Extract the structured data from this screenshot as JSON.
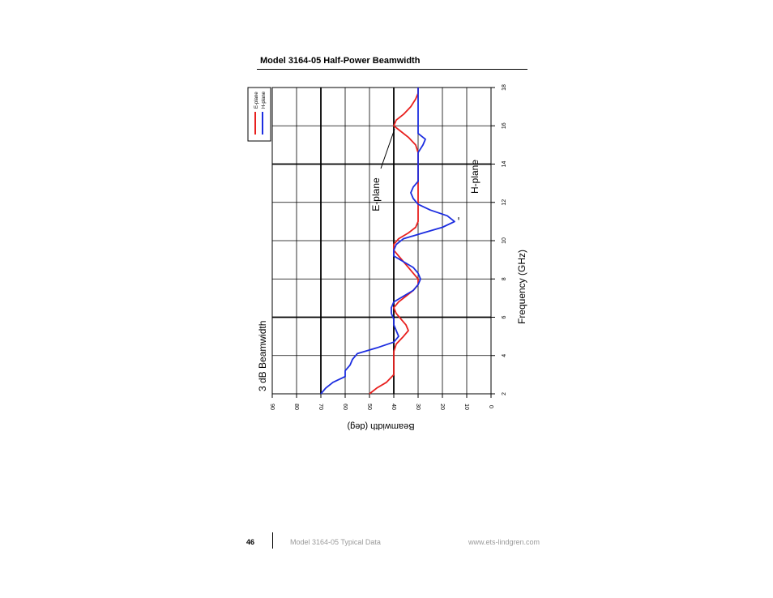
{
  "page": {
    "heading": "Model 3164-05 Half-Power Beamwidth",
    "footer": {
      "page_number": "46",
      "doc_title": "Model 3164-05 Typical Data",
      "url": "www.ets-lindgren.com"
    }
  },
  "chart_data": {
    "type": "line",
    "orientation": "rotated-90-clockwise",
    "title": "3 dB Beamwidth",
    "xlabel": "Frequency (GHz)",
    "ylabel": "Beamwidth (deg)",
    "xlim": [
      2,
      18
    ],
    "ylim": [
      0,
      90
    ],
    "x_ticks": [
      "2",
      "4",
      "6",
      "8",
      "10",
      "12",
      "14",
      "16",
      "18"
    ],
    "y_ticks": [
      "90",
      "80",
      "70",
      "60",
      "50",
      "40",
      "30",
      "20",
      "10",
      "0"
    ],
    "grid": true,
    "legend": {
      "placement": "top-left",
      "entries": [
        "E-plane",
        "H-plane"
      ]
    },
    "annotations": [
      {
        "text": "E-plane",
        "series": "E-plane",
        "x": 16.0,
        "y": 39
      },
      {
        "text": "H-plane",
        "series": "H-plane",
        "x": 11.0,
        "y": 14
      }
    ],
    "series": [
      {
        "name": "E-plane",
        "color": "#e8201e",
        "x": [
          2.0,
          2.3,
          2.6,
          3.0,
          3.4,
          3.8,
          4.2,
          4.6,
          5.0,
          5.3,
          5.6,
          5.9,
          6.2,
          6.5,
          6.8,
          7.1,
          7.4,
          7.7,
          8.0,
          8.3,
          8.6,
          8.9,
          9.2,
          9.5,
          9.8,
          10.1,
          10.4,
          10.7,
          11.0,
          11.4,
          11.8,
          12.2,
          12.6,
          13.0,
          13.4,
          13.8,
          14.2,
          14.6,
          15.0,
          15.4,
          15.8,
          16.0,
          16.3,
          16.6,
          17.0,
          17.4,
          17.7,
          18.0
        ],
        "y": [
          50,
          47,
          43,
          40,
          40,
          40,
          40,
          39,
          36,
          34,
          35,
          37,
          39,
          40,
          38,
          35,
          32,
          30,
          30,
          32,
          34,
          36,
          38,
          40,
          40,
          38,
          34,
          31,
          30,
          30,
          30,
          30,
          30,
          30,
          30,
          30,
          30,
          30,
          31,
          34,
          38,
          40,
          39,
          36,
          33,
          31,
          30,
          30
        ]
      },
      {
        "name": "H-plane",
        "color": "#1c2de0",
        "x": [
          2.0,
          2.3,
          2.6,
          2.9,
          3.2,
          3.5,
          3.8,
          4.1,
          4.4,
          4.7,
          5.0,
          5.3,
          5.6,
          5.9,
          6.2,
          6.5,
          6.8,
          7.1,
          7.4,
          7.7,
          8.0,
          8.3,
          8.6,
          8.9,
          9.2,
          9.5,
          9.8,
          10.1,
          10.4,
          10.7,
          11.0,
          11.3,
          11.6,
          11.9,
          12.2,
          12.5,
          12.8,
          13.1,
          13.4,
          13.8,
          14.2,
          14.6,
          15.0,
          15.3,
          15.6,
          15.9,
          16.2,
          16.6,
          17.0,
          17.4,
          17.8,
          18.0
        ],
        "y": [
          70,
          68,
          65,
          60,
          60,
          58,
          57,
          55,
          47,
          40,
          38,
          39,
          40,
          40,
          41,
          41,
          40,
          36,
          32,
          30,
          29,
          30,
          32,
          36,
          40,
          40,
          39,
          36,
          28,
          20,
          15,
          18,
          25,
          30,
          32,
          33,
          32,
          30,
          30,
          30,
          30,
          30,
          28,
          27,
          30,
          30,
          30,
          30,
          30,
          30,
          30,
          30
        ]
      }
    ]
  }
}
